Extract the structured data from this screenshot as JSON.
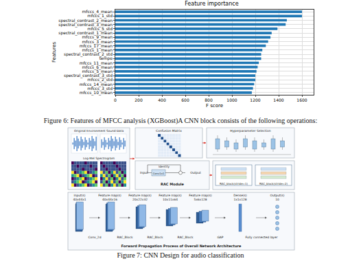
{
  "chart_data": {
    "type": "bar",
    "orientation": "horizontal",
    "title": "Feature importance",
    "x_label": "F score",
    "y_label": "Features",
    "categories": [
      "mfccs_4_mean",
      "mfccs_1_std",
      "spectral_contrast_2_mean",
      "spectral_contrast_3_mean",
      "mfccs_5_std",
      "spectral_contrast_1_mean",
      "mfccs_9_mean",
      "mfccs_3_mean",
      "mfccs_17_mean",
      "mfccs_1_mean",
      "spectral_contrast_2_std",
      "tempo",
      "mfccs_11_mean",
      "mfccs_6_mean",
      "mfccs_5_mean",
      "spectral_contrast_3_std",
      "mfccs_2_std",
      "mfccs_14_mean",
      "mfccs_3_std",
      "mfccs_10_mean"
    ],
    "values": [
      1600,
      1600,
      1470,
      1460,
      1390,
      1340,
      1330,
      1310,
      1290,
      1260,
      1250,
      1250,
      1230,
      1220,
      1210,
      1200,
      1200,
      1190,
      1180,
      1170
    ],
    "color": "#1f77b4",
    "xlim": [
      0,
      1700
    ],
    "xticks": [
      0,
      200,
      400,
      600,
      800,
      1000,
      1200,
      1400,
      1600
    ],
    "grid": true
  },
  "figure6_caption": "Figure 6: Features of MFCC analysis (XGBoost)A CNN block consists of the following operations:",
  "figure7": {
    "panels": {
      "sound_data": "Original Environment Sound Data",
      "spectrogram": "Log-Mel Spectrogram",
      "confusion_matrix": "Confusion Matrix",
      "hyperparameters": "Hyperparameter Selection"
    },
    "rac_module": {
      "title": "RAC Module",
      "input": "Input",
      "identity": "Identity",
      "conv": "Conv1x1",
      "output": "Output"
    },
    "rac_blocks": [
      "RAC_block(stride=1)",
      "RAC_block(stride=2)"
    ],
    "network": {
      "title": "Forward Propagation Process of Overall Network Architecture",
      "shapes": [
        {
          "label": "Input(s)",
          "size": "40x44x1"
        },
        {
          "label": "Feature map(s)",
          "size": "40x44x16"
        },
        {
          "label": "Feature map(s)",
          "size": "20x22x32"
        },
        {
          "label": "Feature map(s)",
          "size": "10x11x64"
        },
        {
          "label": "Feature map(s)",
          "size": "5x6x128"
        },
        {
          "label": "Dense(s)",
          "size": "1x1x128"
        },
        {
          "label": "Output(s)",
          "size": "10"
        }
      ],
      "layers": [
        "Conv_2d",
        "RAC_Block",
        "RAC_Block",
        "RAC_Block",
        "GAP",
        "Fully connected layer"
      ]
    },
    "caption": "Figure 7: CNN Design for audio classification"
  }
}
